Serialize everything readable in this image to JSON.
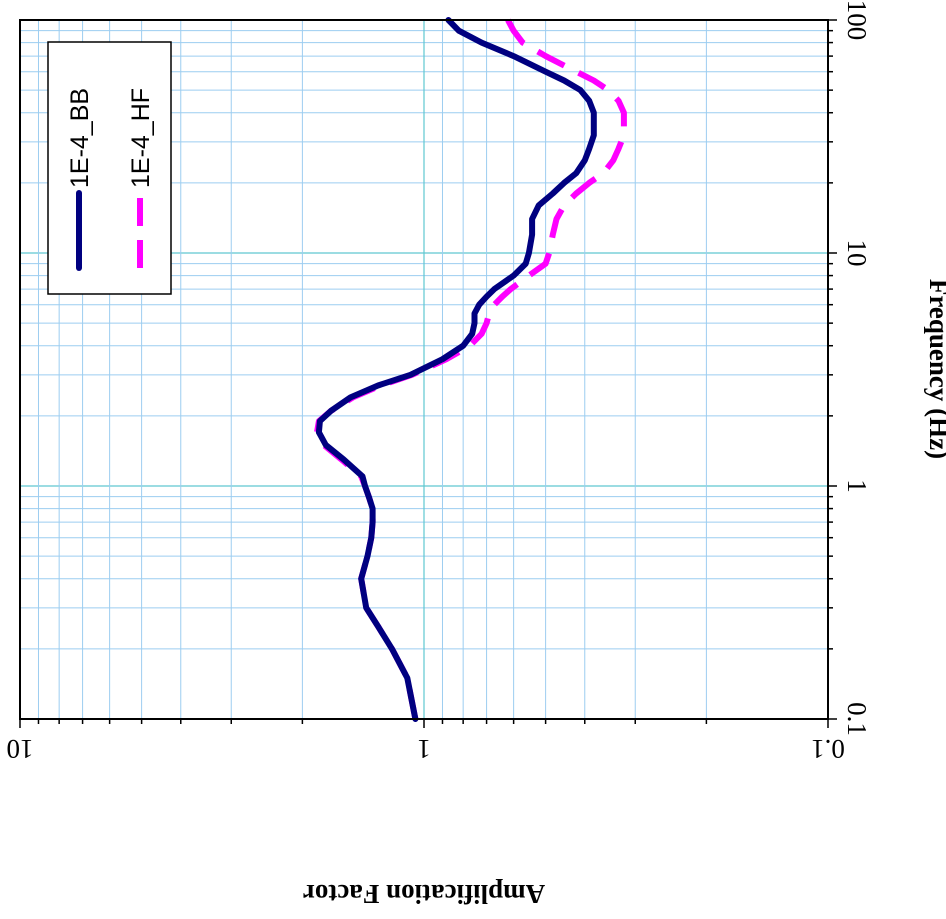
{
  "chart_data": {
    "type": "line",
    "orientation": "rotated-90-cw",
    "xlabel": "Frequency (Hz)",
    "ylabel": "Amplification Factor",
    "x_scale": "log",
    "y_scale": "log",
    "xlim": [
      0.1,
      100
    ],
    "ylim": [
      0.1,
      10
    ],
    "x_ticks": [
      "0.1",
      "1",
      "10",
      "100"
    ],
    "y_ticks": [
      "10",
      "1",
      "0.1"
    ],
    "grid": true,
    "legend_position": "top-left",
    "series": [
      {
        "name": "1E-4_BB",
        "color": "#000080",
        "style": "solid",
        "x": [
          0.1,
          0.15,
          0.2,
          0.25,
          0.3,
          0.4,
          0.5,
          0.6,
          0.7,
          0.8,
          0.9,
          1.0,
          1.1,
          1.3,
          1.5,
          1.7,
          1.9,
          2.1,
          2.4,
          2.7,
          3.0,
          3.5,
          4.0,
          4.5,
          5.0,
          5.5,
          6.0,
          6.5,
          7.0,
          8.0,
          9.0,
          10.0,
          12.0,
          14.0,
          16.0,
          18.0,
          20.0,
          22.0,
          25.0,
          28.0,
          32.0,
          36.0,
          40.0,
          45.0,
          50.0,
          55.0,
          60.0,
          70.0,
          80.0,
          90.0,
          100.0
        ],
        "values": [
          1.05,
          1.1,
          1.2,
          1.3,
          1.39,
          1.43,
          1.38,
          1.35,
          1.34,
          1.34,
          1.37,
          1.4,
          1.42,
          1.58,
          1.75,
          1.82,
          1.81,
          1.7,
          1.52,
          1.3,
          1.08,
          0.9,
          0.8,
          0.76,
          0.75,
          0.75,
          0.73,
          0.7,
          0.67,
          0.6,
          0.56,
          0.55,
          0.54,
          0.54,
          0.52,
          0.48,
          0.45,
          0.42,
          0.4,
          0.39,
          0.38,
          0.38,
          0.38,
          0.39,
          0.41,
          0.45,
          0.5,
          0.6,
          0.72,
          0.82,
          0.87
        ]
      },
      {
        "name": "1E-4_HF",
        "color": "#FF00FF",
        "style": "dashed",
        "x": [
          0.1,
          0.15,
          0.2,
          0.25,
          0.3,
          0.4,
          0.5,
          0.6,
          0.7,
          0.8,
          0.9,
          1.0,
          1.1,
          1.3,
          1.5,
          1.7,
          1.9,
          2.1,
          2.4,
          2.7,
          3.0,
          3.5,
          4.0,
          4.5,
          5.0,
          5.5,
          6.0,
          6.5,
          7.0,
          8.0,
          9.0,
          10.0,
          12.0,
          14.0,
          16.0,
          18.0,
          20.0,
          22.0,
          25.0,
          28.0,
          32.0,
          36.0,
          40.0,
          45.0,
          50.0,
          55.0,
          60.0,
          70.0,
          80.0,
          90.0,
          100.0
        ],
        "values": [
          1.05,
          1.1,
          1.2,
          1.3,
          1.39,
          1.43,
          1.38,
          1.35,
          1.34,
          1.34,
          1.37,
          1.4,
          1.43,
          1.6,
          1.77,
          1.84,
          1.82,
          1.7,
          1.5,
          1.28,
          1.07,
          0.88,
          0.77,
          0.72,
          0.7,
          0.69,
          0.67,
          0.64,
          0.61,
          0.55,
          0.5,
          0.49,
          0.48,
          0.47,
          0.45,
          0.42,
          0.39,
          0.36,
          0.34,
          0.33,
          0.32,
          0.32,
          0.32,
          0.33,
          0.35,
          0.38,
          0.42,
          0.5,
          0.57,
          0.6,
          0.62
        ]
      }
    ]
  }
}
